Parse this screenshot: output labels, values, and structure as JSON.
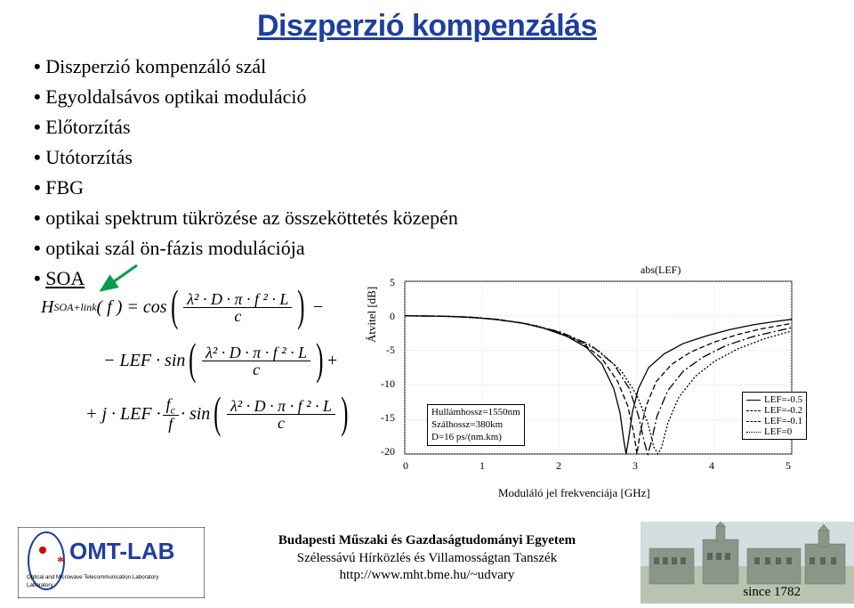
{
  "title": "Diszperzió kompenzálás",
  "bullets": [
    "Diszperzió kompenzáló szál",
    "Egyoldalsávos optikai moduláció",
    "Előtorzítás",
    "Utótorzítás",
    "FBG",
    "optikai spektrum tükrözése az összeköttetés közepén",
    "optikai szál ön-fázis modulációja",
    "SOA"
  ],
  "bullets_underlined": [
    7
  ],
  "formula": {
    "lhs_func": "H",
    "lhs_sub": "SOA+link",
    "lhs_arg": "( f ) = cos",
    "frac_num": "λ² · D · π · f ² · L",
    "frac_den": "c",
    "term2_prefix": "− LEF · sin",
    "term2_suffix": "+",
    "term3_prefix": "+ j · LEF ·",
    "term3_fc": "f",
    "term3_fc_sub": "c",
    "term3_f": "f",
    "term3_sin": "· sin"
  },
  "chart": {
    "title": "abs(LEF)",
    "x_label": "Moduláló jel frekvenciája [GHz]",
    "y_label": "Átvitel [dB]",
    "x_ticks": [
      0,
      1,
      2,
      3,
      4,
      5
    ],
    "y_ticks": [
      5,
      0,
      -5,
      -10,
      -15,
      -20
    ],
    "xlim": [
      0,
      5
    ],
    "ylim": [
      -20,
      5
    ],
    "grid_color": "#bfbfbf",
    "axis_color": "#000000",
    "background": "#ffffff",
    "legend_params": {
      "line1": "Hullámhossz=1550nm",
      "line2": "Szálhossz=380km",
      "line3": "D=16 ps/(nm.km)"
    },
    "series": [
      {
        "name": "LEF=-0.5",
        "color": "#000000",
        "dash": "none",
        "points": [
          [
            0.0,
            0.0
          ],
          [
            0.3,
            -0.02
          ],
          [
            0.6,
            -0.1
          ],
          [
            0.9,
            -0.25
          ],
          [
            1.2,
            -0.55
          ],
          [
            1.5,
            -1.0
          ],
          [
            1.8,
            -1.8
          ],
          [
            2.1,
            -3.0
          ],
          [
            2.35,
            -4.6
          ],
          [
            2.55,
            -7.0
          ],
          [
            2.7,
            -10.5
          ],
          [
            2.78,
            -14.0
          ],
          [
            2.83,
            -18.0
          ],
          [
            2.86,
            -20.0
          ],
          [
            2.89,
            -18.0
          ],
          [
            2.94,
            -14.0
          ],
          [
            3.02,
            -10.5
          ],
          [
            3.15,
            -7.5
          ],
          [
            3.35,
            -5.5
          ],
          [
            3.6,
            -4.0
          ],
          [
            3.9,
            -2.9
          ],
          [
            4.2,
            -2.0
          ],
          [
            4.5,
            -1.3
          ],
          [
            4.8,
            -0.8
          ],
          [
            5.0,
            -0.5
          ]
        ]
      },
      {
        "name": "LEF=-0.2",
        "color": "#000000",
        "dash": "6,3",
        "points": [
          [
            0.0,
            0.0
          ],
          [
            0.4,
            -0.03
          ],
          [
            0.8,
            -0.15
          ],
          [
            1.2,
            -0.5
          ],
          [
            1.6,
            -1.2
          ],
          [
            2.0,
            -2.4
          ],
          [
            2.3,
            -4.0
          ],
          [
            2.55,
            -6.2
          ],
          [
            2.75,
            -9.5
          ],
          [
            2.88,
            -13.0
          ],
          [
            2.96,
            -17.0
          ],
          [
            3.0,
            -20.0
          ],
          [
            3.04,
            -17.0
          ],
          [
            3.12,
            -13.0
          ],
          [
            3.25,
            -9.5
          ],
          [
            3.45,
            -7.0
          ],
          [
            3.7,
            -5.2
          ],
          [
            4.0,
            -3.8
          ],
          [
            4.3,
            -2.7
          ],
          [
            4.6,
            -1.9
          ],
          [
            5.0,
            -1.1
          ]
        ]
      },
      {
        "name": "LEF=-0.1",
        "color": "#000000",
        "dash": "10,3,2,3",
        "points": [
          [
            0.0,
            0.0
          ],
          [
            0.5,
            -0.05
          ],
          [
            1.0,
            -0.3
          ],
          [
            1.5,
            -1.0
          ],
          [
            2.0,
            -2.3
          ],
          [
            2.4,
            -4.2
          ],
          [
            2.7,
            -7.0
          ],
          [
            2.9,
            -10.5
          ],
          [
            3.02,
            -14.5
          ],
          [
            3.1,
            -18.5
          ],
          [
            3.14,
            -20.0
          ],
          [
            3.18,
            -18.5
          ],
          [
            3.26,
            -14.5
          ],
          [
            3.4,
            -10.8
          ],
          [
            3.6,
            -8.0
          ],
          [
            3.85,
            -6.0
          ],
          [
            4.15,
            -4.3
          ],
          [
            4.5,
            -3.0
          ],
          [
            5.0,
            -1.7
          ]
        ]
      },
      {
        "name": "LEF=0",
        "color": "#000000",
        "dash": "2,2",
        "points": [
          [
            0.0,
            0.0
          ],
          [
            0.6,
            -0.08
          ],
          [
            1.2,
            -0.5
          ],
          [
            1.7,
            -1.4
          ],
          [
            2.1,
            -2.8
          ],
          [
            2.5,
            -5.0
          ],
          [
            2.8,
            -8.0
          ],
          [
            3.0,
            -11.5
          ],
          [
            3.14,
            -15.5
          ],
          [
            3.22,
            -19.0
          ],
          [
            3.27,
            -20.0
          ],
          [
            3.32,
            -19.0
          ],
          [
            3.4,
            -15.5
          ],
          [
            3.54,
            -11.8
          ],
          [
            3.75,
            -8.8
          ],
          [
            4.0,
            -6.6
          ],
          [
            4.3,
            -4.8
          ],
          [
            4.65,
            -3.3
          ],
          [
            5.0,
            -2.2
          ]
        ]
      }
    ]
  },
  "footer": {
    "line1": "Budapesti Műszaki és Gazdaságtudományi Egyetem",
    "line2": "Szélessávú Hírközlés és Villamosságtan Tanszék",
    "link": "http://www.mht.bme.hu/~udvary",
    "since": "since 1782",
    "logo_top": "OMT-LAB",
    "logo_bottom": "Optical and Microwave Telecommunication Laboratory"
  }
}
